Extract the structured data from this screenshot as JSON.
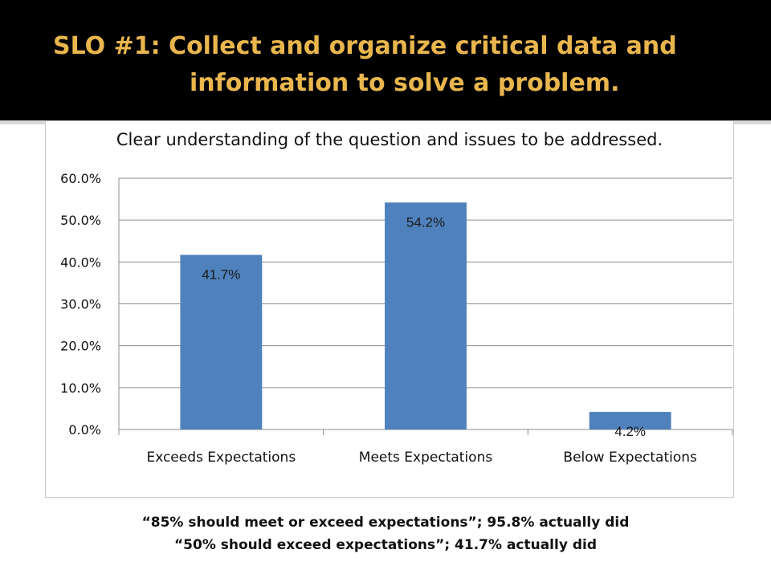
{
  "slide": {
    "title_line1": "SLO #1: Collect and organize critical data and",
    "title_line2": "information to solve a problem.",
    "title_color": "#e9b64e",
    "caption_line1": "“85% should meet or exceed expectations”; 95.8% actually did",
    "caption_line2": "“50% should exceed expectations”; 41.7% actually did"
  },
  "chart_data": {
    "type": "bar",
    "title": "Clear understanding of the question and issues to be addressed.",
    "categories": [
      "Exceeds Expectations",
      "Meets Expectations",
      "Below Expectations"
    ],
    "values": [
      41.7,
      54.2,
      4.2
    ],
    "data_labels": [
      "41.7%",
      "54.2%",
      "4.2%"
    ],
    "ylim": [
      0,
      60
    ],
    "yticks": [
      0,
      10,
      20,
      30,
      40,
      50,
      60
    ],
    "ytick_labels": [
      "0.0%",
      "10.0%",
      "20.0%",
      "30.0%",
      "40.0%",
      "50.0%",
      "60.0%"
    ],
    "grid": true,
    "legend": "none",
    "bar_color": "#4f81bd"
  }
}
